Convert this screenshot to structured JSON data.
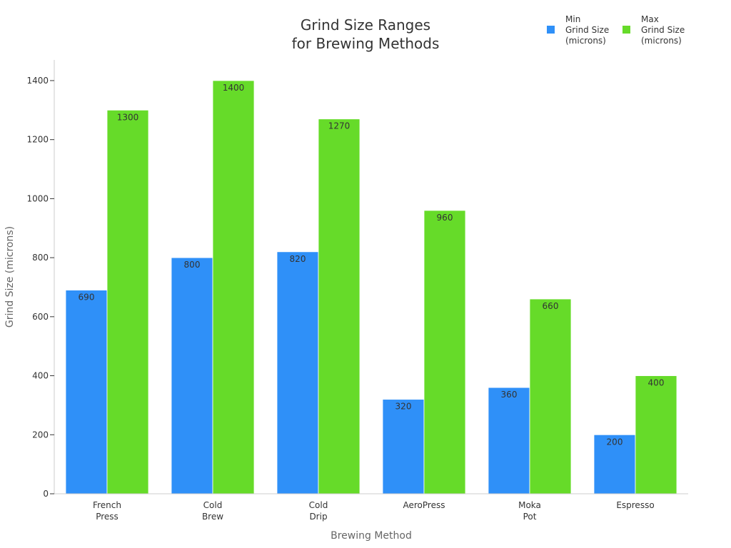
{
  "chart_data": {
    "type": "bar",
    "title": [
      "Grind Size Ranges",
      "for Brewing Methods"
    ],
    "xlabel": "Brewing Method",
    "ylabel": "Grind Size (microns)",
    "categories": [
      [
        "French",
        "Press"
      ],
      [
        "Cold",
        "Brew"
      ],
      [
        "Cold",
        "Drip"
      ],
      [
        "AeroPress"
      ],
      [
        "Moka",
        "Pot"
      ],
      [
        "Espresso"
      ]
    ],
    "series": [
      {
        "name": [
          "Min",
          "Grind Size",
          "(microns)"
        ],
        "color": "#2f90f8",
        "values": [
          690,
          800,
          820,
          320,
          360,
          200
        ]
      },
      {
        "name": [
          "Max",
          "Grind Size",
          "(microns)"
        ],
        "color": "#66db29",
        "values": [
          1300,
          1400,
          1270,
          960,
          660,
          400
        ]
      }
    ],
    "ylim": [
      0,
      1470
    ],
    "yticks": [
      0,
      200,
      400,
      600,
      800,
      1000,
      1200,
      1400
    ],
    "grid": false,
    "legend": "top-right"
  }
}
